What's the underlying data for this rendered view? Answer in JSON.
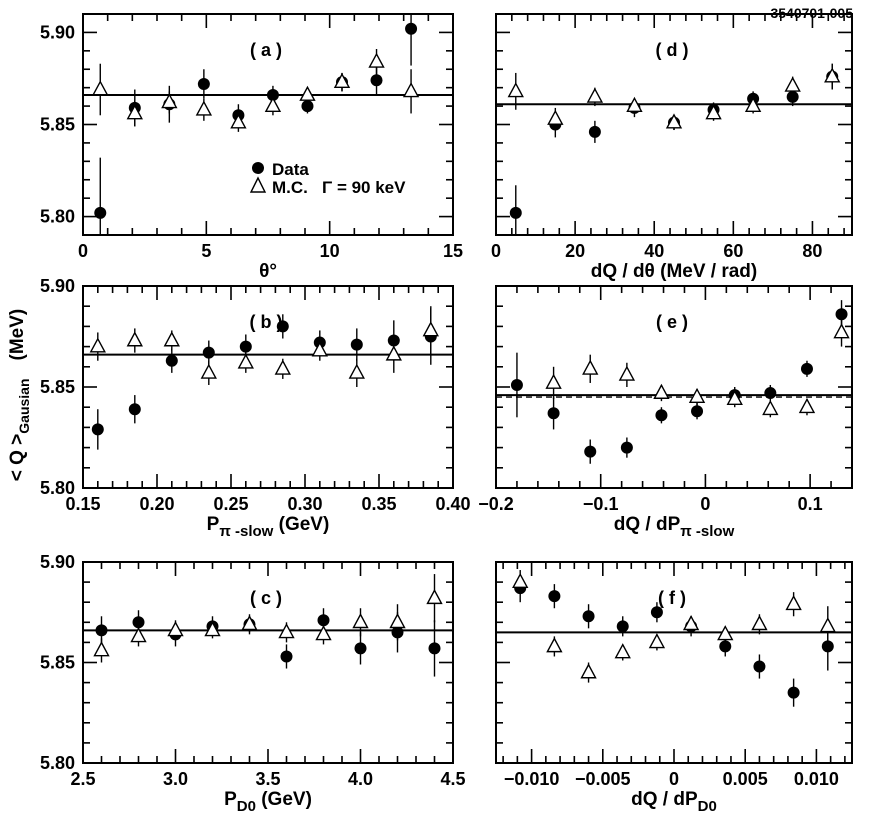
{
  "figure_id": "3540701-005",
  "y_axis_label": {
    "prefix": "< Q >",
    "subscript": "Gausian",
    "unit": "(MeV)"
  },
  "legend": {
    "data_label": "Data",
    "mc_label": "M.C.",
    "gamma_label": "Γ = 90 keV",
    "data_marker_icon": "filled-circle-icon",
    "mc_marker_icon": "open-triangle-icon"
  },
  "chart_data": [
    {
      "id": "a",
      "type": "scatter",
      "title": "( a )",
      "xlabel": "θ°",
      "xlim": [
        0,
        15
      ],
      "xticks": [
        0,
        5,
        10,
        15
      ],
      "xtick_labels": [
        "0",
        "5",
        "10",
        "15"
      ],
      "ylim": [
        5.79,
        5.91
      ],
      "yticks": [
        5.8,
        5.85,
        5.9
      ],
      "ytick_labels": [
        "5.80",
        "5.85",
        "5.90"
      ],
      "fit_line": 5.866,
      "series": [
        {
          "name": "Data",
          "marker": "circle",
          "x": [
            0.7,
            2.1,
            3.5,
            4.9,
            6.3,
            7.7,
            9.1,
            10.5,
            11.9,
            13.3
          ],
          "y": [
            5.802,
            5.859,
            5.861,
            5.872,
            5.855,
            5.866,
            5.86,
            5.873,
            5.874,
            5.902
          ],
          "err": [
            0.03,
            0.01,
            0.01,
            0.008,
            0.006,
            0.005,
            0.004,
            0.005,
            0.008,
            0.02
          ]
        },
        {
          "name": "M.C.",
          "marker": "triangle",
          "x": [
            0.7,
            2.1,
            3.5,
            4.9,
            6.3,
            7.7,
            9.1,
            10.5,
            11.9,
            13.3
          ],
          "y": [
            5.869,
            5.856,
            5.862,
            5.858,
            5.851,
            5.86,
            5.866,
            5.873,
            5.884,
            5.868
          ],
          "err": [
            0.014,
            0.007,
            0.006,
            0.006,
            0.005,
            0.005,
            0.004,
            0.005,
            0.007,
            0.012
          ]
        }
      ]
    },
    {
      "id": "d",
      "type": "scatter",
      "title": "( d )",
      "xlabel": "dQ / dθ (MeV / rad)",
      "xlim": [
        0,
        90
      ],
      "xticks": [
        0,
        20,
        40,
        60,
        80
      ],
      "xtick_labels": [
        "0",
        "20",
        "40",
        "60",
        "80"
      ],
      "ylim": [
        5.79,
        5.91
      ],
      "yticks": [
        5.8,
        5.85,
        5.9
      ],
      "ytick_labels": [],
      "fit_line": 5.861,
      "series": [
        {
          "name": "Data",
          "marker": "circle",
          "x": [
            5,
            15,
            25,
            35,
            45,
            55,
            65,
            75,
            85
          ],
          "y": [
            5.802,
            5.85,
            5.846,
            5.859,
            5.851,
            5.858,
            5.864,
            5.865,
            5.876
          ],
          "err": [
            0.015,
            0.007,
            0.006,
            0.005,
            0.004,
            0.004,
            0.004,
            0.005,
            0.007
          ]
        },
        {
          "name": "M.C.",
          "marker": "triangle",
          "x": [
            5,
            15,
            25,
            35,
            45,
            55,
            65,
            75,
            85
          ],
          "y": [
            5.868,
            5.853,
            5.865,
            5.86,
            5.851,
            5.856,
            5.86,
            5.871,
            5.876
          ],
          "err": [
            0.01,
            0.006,
            0.005,
            0.004,
            0.004,
            0.004,
            0.004,
            0.005,
            0.007
          ]
        }
      ]
    },
    {
      "id": "b",
      "type": "scatter",
      "title": "( b )",
      "xlabel": "Pπ -slow (GeV)",
      "xlim": [
        0.15,
        0.4
      ],
      "xticks": [
        0.15,
        0.2,
        0.25,
        0.3,
        0.35,
        0.4
      ],
      "xtick_labels": [
        "0.15",
        "0.20",
        "0.25",
        "0.30",
        "0.35",
        "0.40"
      ],
      "ylim": [
        5.8,
        5.9
      ],
      "yticks": [
        5.8,
        5.85,
        5.9
      ],
      "ytick_labels": [
        "5.80",
        "5.85",
        "5.90"
      ],
      "fit_line": 5.866,
      "series": [
        {
          "name": "Data",
          "marker": "circle",
          "x": [
            0.16,
            0.185,
            0.21,
            0.235,
            0.26,
            0.285,
            0.31,
            0.335,
            0.36,
            0.385
          ],
          "y": [
            5.829,
            5.839,
            5.863,
            5.867,
            5.87,
            5.88,
            5.872,
            5.871,
            5.873,
            5.875
          ],
          "err": [
            0.01,
            0.007,
            0.006,
            0.006,
            0.006,
            0.006,
            0.006,
            0.008,
            0.01,
            0.014
          ]
        },
        {
          "name": "M.C.",
          "marker": "triangle",
          "x": [
            0.16,
            0.185,
            0.21,
            0.235,
            0.26,
            0.285,
            0.31,
            0.335,
            0.36,
            0.385
          ],
          "y": [
            5.87,
            5.873,
            5.873,
            5.857,
            5.862,
            5.859,
            5.868,
            5.857,
            5.866,
            5.878
          ],
          "err": [
            0.007,
            0.006,
            0.005,
            0.006,
            0.005,
            0.005,
            0.005,
            0.007,
            0.009,
            0.012
          ]
        }
      ]
    },
    {
      "id": "e",
      "type": "scatter",
      "title": "( e )",
      "xlabel": "dQ / dPπ -slow",
      "xlim": [
        -0.2,
        0.14
      ],
      "xticks": [
        -0.2,
        -0.1,
        0,
        0.1
      ],
      "xtick_labels": [
        "−0.2",
        "−0.1",
        "0",
        "0.1"
      ],
      "ylim": [
        5.8,
        5.9
      ],
      "yticks": [
        5.8,
        5.85,
        5.9
      ],
      "ytick_labels": [],
      "fit_line": 5.846,
      "fit_line_mc": 5.845,
      "series": [
        {
          "name": "Data",
          "marker": "circle",
          "x": [
            -0.18,
            -0.145,
            -0.11,
            -0.075,
            -0.042,
            -0.008,
            0.028,
            0.062,
            0.097,
            0.13
          ],
          "y": [
            5.851,
            5.837,
            5.818,
            5.82,
            5.836,
            5.838,
            5.846,
            5.847,
            5.859,
            5.886
          ],
          "err": [
            0.016,
            0.008,
            0.006,
            0.005,
            0.004,
            0.004,
            0.004,
            0.004,
            0.004,
            0.007
          ]
        },
        {
          "name": "M.C.",
          "marker": "triangle",
          "x": [
            -0.145,
            -0.11,
            -0.075,
            -0.042,
            -0.008,
            0.028,
            0.062,
            0.097,
            0.13
          ],
          "y": [
            5.852,
            5.859,
            5.856,
            5.847,
            5.845,
            5.844,
            5.839,
            5.84,
            5.877
          ],
          "err": [
            0.008,
            0.007,
            0.006,
            0.004,
            0.004,
            0.004,
            0.004,
            0.004,
            0.007
          ]
        }
      ]
    },
    {
      "id": "c",
      "type": "scatter",
      "title": "( c )",
      "xlabel": "PD0 (GeV)",
      "xlim": [
        2.5,
        4.5
      ],
      "xticks": [
        2.5,
        3.0,
        3.5,
        4.0,
        4.5
      ],
      "xtick_labels": [
        "2.5",
        "3.0",
        "3.5",
        "4.0",
        "4.5"
      ],
      "ylim": [
        5.8,
        5.9
      ],
      "yticks": [
        5.8,
        5.85,
        5.9
      ],
      "ytick_labels": [
        "5.80",
        "5.85",
        "5.90"
      ],
      "fit_line": 5.866,
      "series": [
        {
          "name": "Data",
          "marker": "circle",
          "x": [
            2.6,
            2.8,
            3.0,
            3.2,
            3.4,
            3.6,
            3.8,
            4.0,
            4.2,
            4.4
          ],
          "y": [
            5.866,
            5.87,
            5.864,
            5.868,
            5.869,
            5.853,
            5.871,
            5.857,
            5.865,
            5.857
          ],
          "err": [
            0.007,
            0.006,
            0.006,
            0.005,
            0.005,
            0.006,
            0.006,
            0.008,
            0.01,
            0.014
          ]
        },
        {
          "name": "M.C.",
          "marker": "triangle",
          "x": [
            2.6,
            2.8,
            3.0,
            3.2,
            3.4,
            3.6,
            3.8,
            4.0,
            4.2,
            4.4
          ],
          "y": [
            5.856,
            5.863,
            5.866,
            5.866,
            5.869,
            5.865,
            5.864,
            5.87,
            5.87,
            5.882
          ],
          "err": [
            0.006,
            0.005,
            0.005,
            0.004,
            0.004,
            0.005,
            0.005,
            0.007,
            0.009,
            0.012
          ]
        }
      ]
    },
    {
      "id": "f",
      "type": "scatter",
      "title": "( f )",
      "xlabel": "dQ / dPD0",
      "xlim": [
        -0.0125,
        0.0125
      ],
      "xticks": [
        -0.01,
        -0.005,
        0,
        0.005,
        0.01
      ],
      "xtick_labels": [
        "−0.010",
        "−0.005",
        "0",
        "0.005",
        "0.010"
      ],
      "ylim": [
        5.8,
        5.9
      ],
      "yticks": [
        5.8,
        5.85,
        5.9
      ],
      "ytick_labels": [],
      "fit_line": 5.865,
      "series": [
        {
          "name": "Data",
          "marker": "circle",
          "x": [
            -0.0108,
            -0.0084,
            -0.006,
            -0.0036,
            -0.0012,
            0.0012,
            0.0036,
            0.006,
            0.0084,
            0.0108
          ],
          "y": [
            5.887,
            5.883,
            5.873,
            5.868,
            5.875,
            5.868,
            5.858,
            5.848,
            5.835,
            5.858
          ],
          "err": [
            0.007,
            0.006,
            0.006,
            0.005,
            0.005,
            0.005,
            0.005,
            0.006,
            0.007,
            0.012
          ]
        },
        {
          "name": "M.C.",
          "marker": "triangle",
          "x": [
            -0.0108,
            -0.0084,
            -0.006,
            -0.0036,
            -0.0012,
            0.0012,
            0.0036,
            0.006,
            0.0084,
            0.0108
          ],
          "y": [
            5.89,
            5.858,
            5.845,
            5.855,
            5.86,
            5.869,
            5.864,
            5.869,
            5.879,
            5.868
          ],
          "err": [
            0.006,
            0.005,
            0.005,
            0.004,
            0.004,
            0.004,
            0.004,
            0.005,
            0.006,
            0.01
          ]
        }
      ]
    }
  ]
}
